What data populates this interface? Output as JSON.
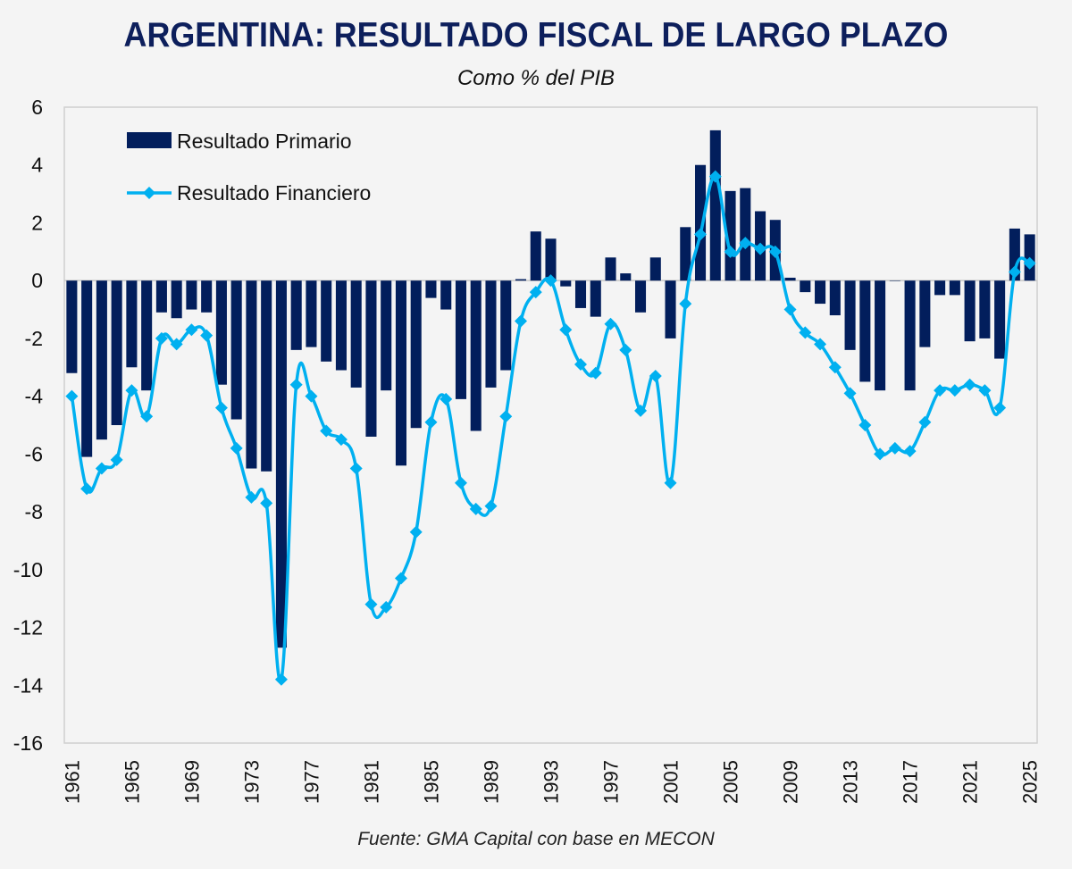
{
  "header": {
    "title": "ARGENTINA: RESULTADO FISCAL DE LARGO PLAZO",
    "subtitle": "Como % del PIB"
  },
  "footer": {
    "source": "Fuente: GMA Capital con base en MECON"
  },
  "colors": {
    "bar": "#021e5c",
    "line": "#00b0f0",
    "background": "#f4f4f4",
    "title": "#0d1f5c"
  },
  "chart_data": {
    "type": "bar+line",
    "title": "ARGENTINA: RESULTADO FISCAL DE LARGO PLAZO",
    "subtitle": "Como % del PIB",
    "xlabel": "",
    "ylabel": "",
    "ylim": [
      -16,
      6
    ],
    "yticks": [
      "6",
      "4",
      "2",
      "0",
      "-2",
      "-4",
      "-6",
      "-8",
      "-10",
      "-12",
      "-14",
      "-16"
    ],
    "ytick_values": [
      6,
      4,
      2,
      0,
      -2,
      -4,
      -6,
      -8,
      -10,
      -12,
      -14,
      -16
    ],
    "xtick_labels": [
      "1961",
      "1965",
      "1969",
      "1973",
      "1977",
      "1981",
      "1985",
      "1989",
      "1993",
      "1997",
      "2001",
      "2005",
      "2009",
      "2013",
      "2017",
      "2021",
      "2025"
    ],
    "grid": false,
    "legend_position": "top-left",
    "x": [
      1961,
      1962,
      1963,
      1964,
      1965,
      1966,
      1967,
      1968,
      1969,
      1970,
      1971,
      1972,
      1973,
      1974,
      1975,
      1976,
      1977,
      1978,
      1979,
      1980,
      1981,
      1982,
      1983,
      1984,
      1985,
      1986,
      1987,
      1988,
      1989,
      1990,
      1991,
      1992,
      1993,
      1994,
      1995,
      1996,
      1997,
      1998,
      1999,
      2000,
      2001,
      2002,
      2003,
      2004,
      2005,
      2006,
      2007,
      2008,
      2009,
      2010,
      2011,
      2012,
      2013,
      2014,
      2015,
      2016,
      2017,
      2018,
      2019,
      2020,
      2021,
      2022,
      2023,
      2024,
      2025
    ],
    "series": [
      {
        "name": "Resultado Primario",
        "type": "bar",
        "values": [
          -3.2,
          -6.1,
          -5.5,
          -5.0,
          -3.0,
          -3.8,
          -1.1,
          -1.3,
          -1.0,
          -1.1,
          -3.6,
          -4.8,
          -6.5,
          -6.6,
          -12.7,
          -2.4,
          -2.3,
          -2.8,
          -3.1,
          -3.7,
          -5.4,
          -3.8,
          -6.4,
          -5.1,
          -0.6,
          -1.0,
          -4.1,
          -5.2,
          -3.7,
          -3.1,
          0.05,
          1.7,
          1.45,
          -0.2,
          -0.95,
          -1.25,
          0.8,
          0.25,
          -1.1,
          0.8,
          -2.0,
          1.85,
          4.0,
          5.2,
          3.1,
          3.2,
          2.4,
          2.1,
          0.1,
          -0.4,
          -0.8,
          -1.2,
          -2.4,
          -3.5,
          -3.8,
          0,
          -3.8,
          -2.3,
          -0.5,
          -0.5,
          -2.1,
          -2.0,
          -2.7,
          1.8,
          1.6
        ]
      },
      {
        "name": "Resultado Financiero",
        "type": "line",
        "marker": "diamond",
        "values": [
          -4.0,
          -7.2,
          -6.5,
          -6.2,
          -3.8,
          -4.7,
          -2.0,
          -2.2,
          -1.7,
          -1.9,
          -4.4,
          -5.8,
          -7.5,
          -7.7,
          -13.8,
          -3.6,
          -4.0,
          -5.2,
          -5.5,
          -6.5,
          -11.2,
          -11.3,
          -10.3,
          -8.7,
          -4.9,
          -4.1,
          -7.0,
          -7.9,
          -7.8,
          -4.7,
          -1.4,
          -0.4,
          0.0,
          -1.7,
          -2.9,
          -3.2,
          -1.5,
          -2.4,
          -4.5,
          -3.3,
          -7.0,
          -0.8,
          1.6,
          3.6,
          1.0,
          1.3,
          1.1,
          1.0,
          -1.0,
          -1.8,
          -2.2,
          -3.0,
          -3.9,
          -5.0,
          -6.0,
          -5.8,
          -5.9,
          -4.9,
          -3.8,
          -3.8,
          -3.6,
          -3.8,
          -4.4,
          0.3,
          0.6
        ]
      }
    ]
  }
}
